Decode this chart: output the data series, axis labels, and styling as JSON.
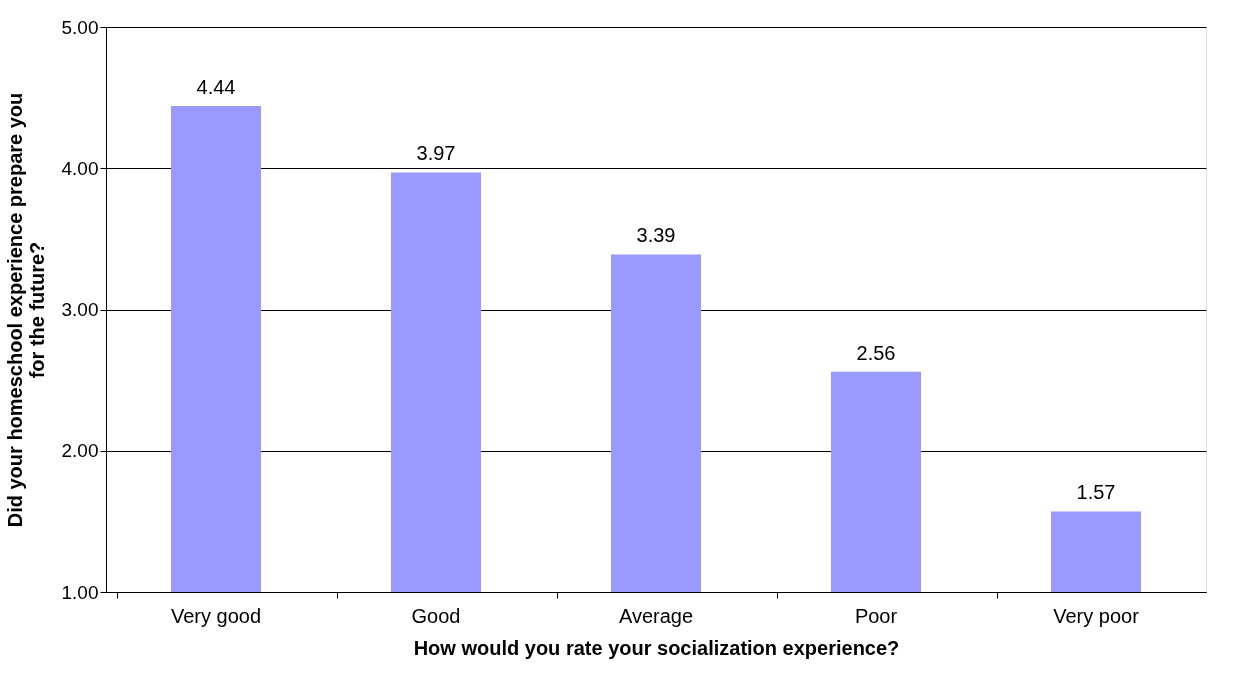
{
  "chart_data": {
    "type": "bar",
    "xlabel": "How would you rate your socialization experience?",
    "ylabel": "Did your homeschool experience prepare you for the future?",
    "categories": [
      "Very good",
      "Good",
      "Average",
      "Poor",
      "Very poor"
    ],
    "values": [
      4.44,
      3.97,
      3.39,
      2.56,
      1.57
    ],
    "color": "#9999ff",
    "ylim": [
      1,
      5
    ],
    "yticks": [
      {
        "value": 1,
        "label": "1.00"
      },
      {
        "value": 2,
        "label": "2.00"
      },
      {
        "value": 3,
        "label": "3.00"
      },
      {
        "value": 4,
        "label": "4.00"
      },
      {
        "value": 5,
        "label": "5.00"
      }
    ],
    "grid": "y",
    "data_labels": true
  }
}
